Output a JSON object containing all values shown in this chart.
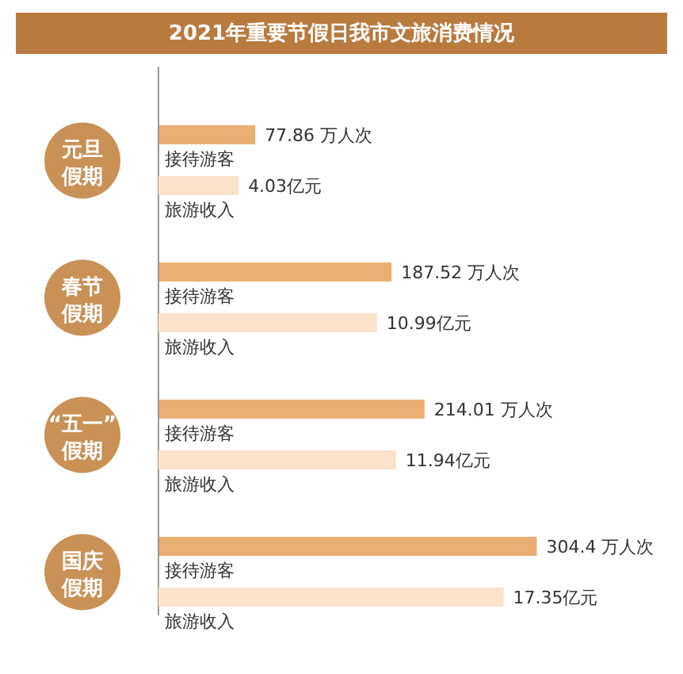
{
  "chart_data": [
    {
      "type": "bar",
      "orientation": "horizontal",
      "title": "2021年重要节假日我市文旅消费情况",
      "categories": [
        "元旦假期",
        "春节假期",
        "“五一”假期",
        "国庆假期"
      ],
      "tick_labels": "y",
      "series": [
        {
          "name": "接待游客",
          "color": "#e9ae72",
          "values": [
            77.86,
            187.52,
            214.01,
            304.4
          ],
          "value_labels": [
            "77.86 万人次",
            "187.52 万人次",
            "214.01 万人次",
            "304.4 万人次"
          ]
        }
      ]
    },
    {
      "type": "bar",
      "orientation": "horizontal",
      "categories": [
        "元旦假期",
        "春节假期",
        "“五一”假期",
        "国庆假期"
      ],
      "tick_labels": false,
      "series": [
        {
          "name": "旅游收入",
          "color": "#fbe2ca",
          "values": [
            4.03,
            10.99,
            11.94,
            17.35
          ],
          "value_labels": [
            "4.03亿元",
            "10.99亿元",
            "11.94亿元",
            "17.35亿元"
          ]
        }
      ]
    }
  ]
}
